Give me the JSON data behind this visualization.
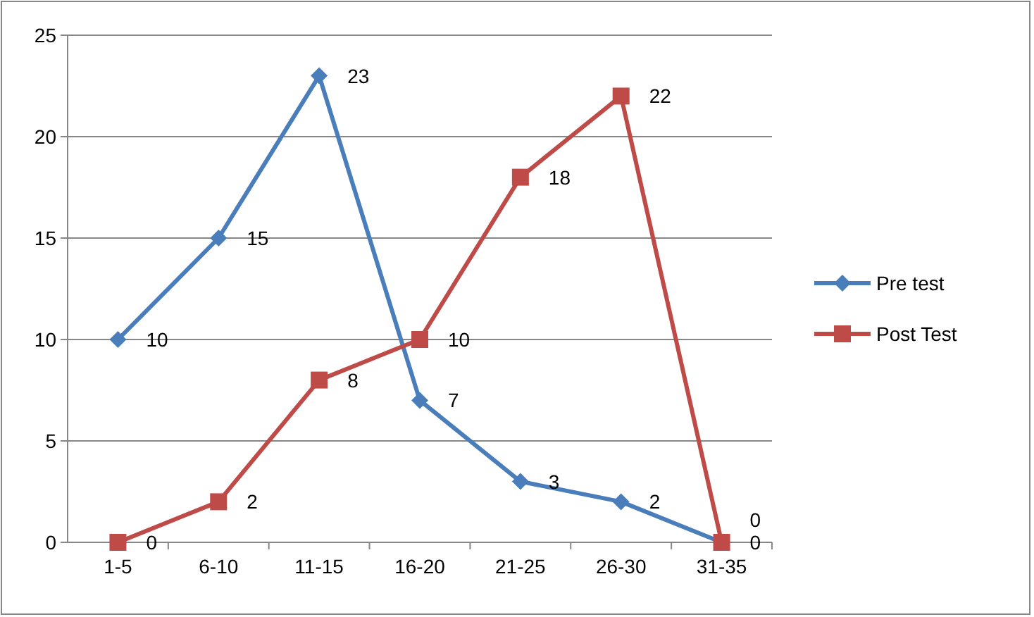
{
  "chart_data": {
    "type": "line",
    "categories": [
      "1-5",
      "6-10",
      "11-15",
      "16-20",
      "21-25",
      "26-30",
      "31-35"
    ],
    "series": [
      {
        "name": "Pre test",
        "color": "#4a7ebb",
        "marker": "diamond",
        "values": [
          10,
          15,
          23,
          7,
          3,
          2,
          0
        ]
      },
      {
        "name": "Post Test",
        "color": "#be4b48",
        "marker": "square",
        "values": [
          0,
          2,
          8,
          10,
          18,
          22,
          0
        ]
      }
    ],
    "ylim": [
      0,
      25
    ],
    "yticks": [
      0,
      5,
      10,
      15,
      20,
      25
    ],
    "grid": "y",
    "legend": "right",
    "data_labels": true
  }
}
